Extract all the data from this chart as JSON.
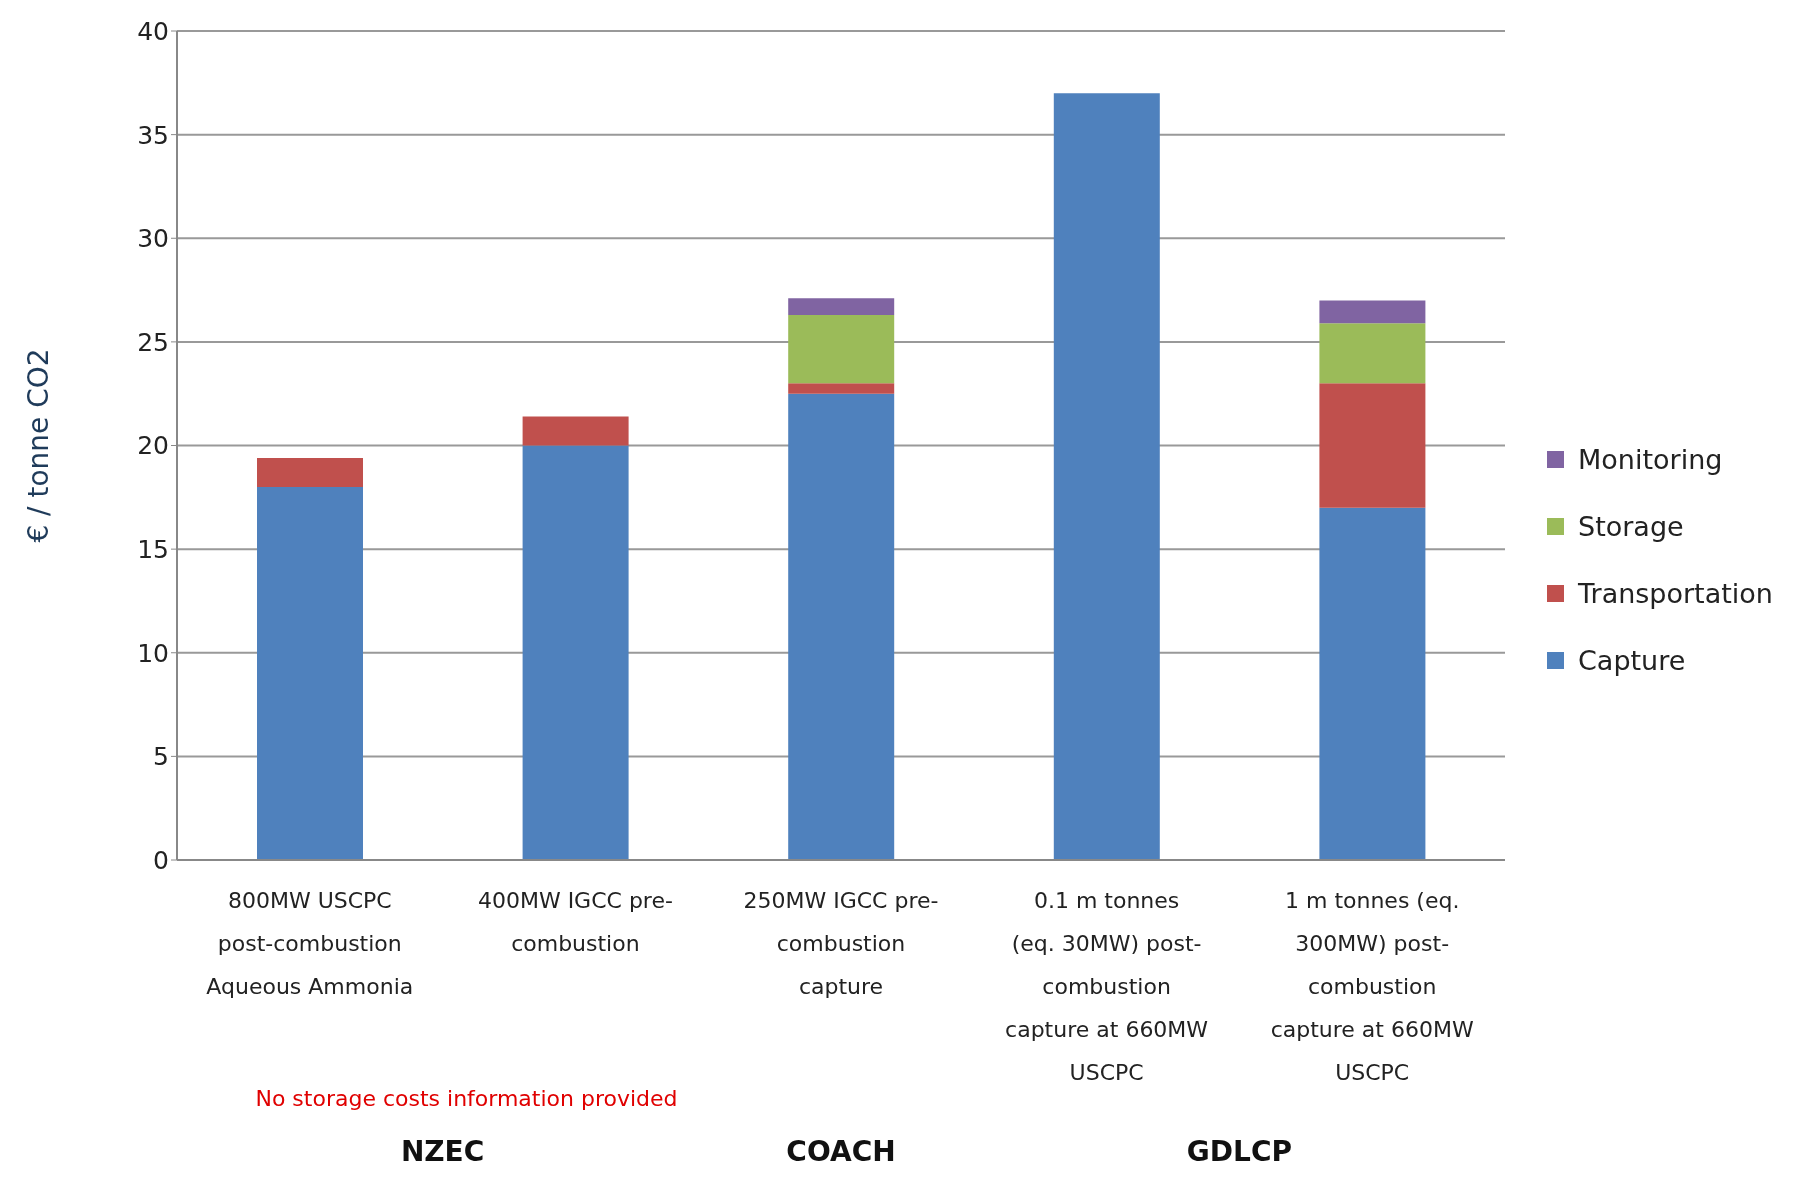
{
  "chart_data": {
    "type": "bar",
    "ylabel": "€ / tonne CO2",
    "stacked": true,
    "categories": [
      "800MW USCPC post-combustion Aqueous Ammonia",
      "400MW IGCC pre-combustion",
      "250MW IGCC pre-combustion capture",
      "0.1 m tonnes (eq. 30MW) post-combustion capture at 660MW USCPC",
      "1 m tonnes (eq. 300MW) post-combustion capture at 660MW USCPC"
    ],
    "series": [
      {
        "name": "Capture",
        "color": "#4f81bd",
        "values": [
          18,
          20,
          22.5,
          37,
          17
        ]
      },
      {
        "name": "Transportation",
        "color": "#c0504d",
        "values": [
          1.4,
          1.4,
          0.5,
          null,
          6
        ]
      },
      {
        "name": "Storage",
        "color": "#9bbb59",
        "values": [
          null,
          null,
          3.3,
          null,
          2.9
        ]
      },
      {
        "name": "Monitoring",
        "color": "#8064a2",
        "values": [
          null,
          null,
          0.8,
          null,
          1.1
        ]
      }
    ],
    "ylim": [
      0,
      40
    ],
    "yticks": [
      0,
      5,
      10,
      15,
      20,
      25,
      30,
      35,
      40
    ],
    "grid": "y",
    "legend": "right",
    "annotations": [
      "No storage costs information provided",
      "NZEC",
      "COACH",
      "GDLCP"
    ]
  }
}
